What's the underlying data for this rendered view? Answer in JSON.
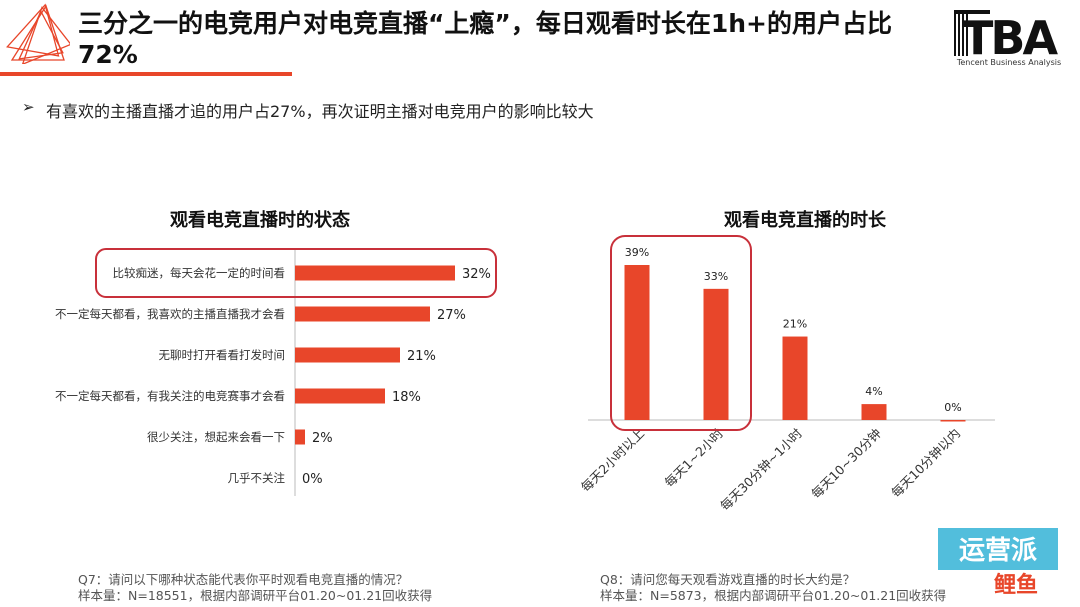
{
  "header": {
    "title": "三分之一的电竞用户对电竞直播“上瘾”，每日观看时长在1h+的用户占比72%",
    "subtitle_bullet": "➢",
    "subtitle": "有喜欢的主播直播才追的用户占27%，再次证明主播对电竞用户的影响比较大",
    "brand_logo": "TBA",
    "brand_sub": "Tencent Business Analysis"
  },
  "chart_data": [
    {
      "type": "bar",
      "orientation": "horizontal",
      "title": "观看电竞直播时的状态",
      "categories": [
        "比较痴迷，每天会花一定的时间看",
        "不一定每天都看，我喜欢的主播直播我才会看",
        "无聊时打开看看打发时间",
        "不一定每天都看，有我关注的电竞赛事才会看",
        "很少关注，想起来会看一下",
        "几乎不关注"
      ],
      "values": [
        32,
        27,
        21,
        18,
        2,
        0
      ],
      "value_labels": [
        "32%",
        "27%",
        "21%",
        "18%",
        "2%",
        "0%"
      ],
      "xlim": [
        0,
        32
      ],
      "highlight": "比较痴迷，每天会花一定的时间看",
      "color": "#e8462a"
    },
    {
      "type": "bar",
      "orientation": "vertical",
      "title": "观看电竞直播的时长",
      "categories": [
        "每天2小时以上",
        "每天1~2小时",
        "每天30分钟~1小时",
        "每天10~30分钟",
        "每天10分钟以内"
      ],
      "values": [
        39,
        33,
        21,
        4,
        0
      ],
      "value_labels": [
        "39%",
        "33%",
        "21%",
        "4%",
        "0%"
      ],
      "ylim": [
        0,
        39
      ],
      "highlight": [
        "每天2小时以上",
        "每天1~2小时"
      ],
      "color": "#e8462a"
    }
  ],
  "footnotes": {
    "left_q": "Q7：请问以下哪种状态能代表你平时观看电竞直播的情况？",
    "left_n": "样本量：N=18551，根据内部调研平台01.20~01.21回收获得",
    "right_q": "Q8：请问您每天观看游戏直播的时长大约是？",
    "right_n": "样本量：N=5873，根据内部调研平台01.20~01.21回收获得"
  },
  "watermark": {
    "line1": "运营派",
    "line2": "鲤鱼"
  },
  "colors": {
    "accent": "#e8462a",
    "highlight_border": "#c8303a",
    "watermark": "#3fb7d8"
  },
  "icons": {
    "corner": "triangle-outline-logo-icon"
  }
}
